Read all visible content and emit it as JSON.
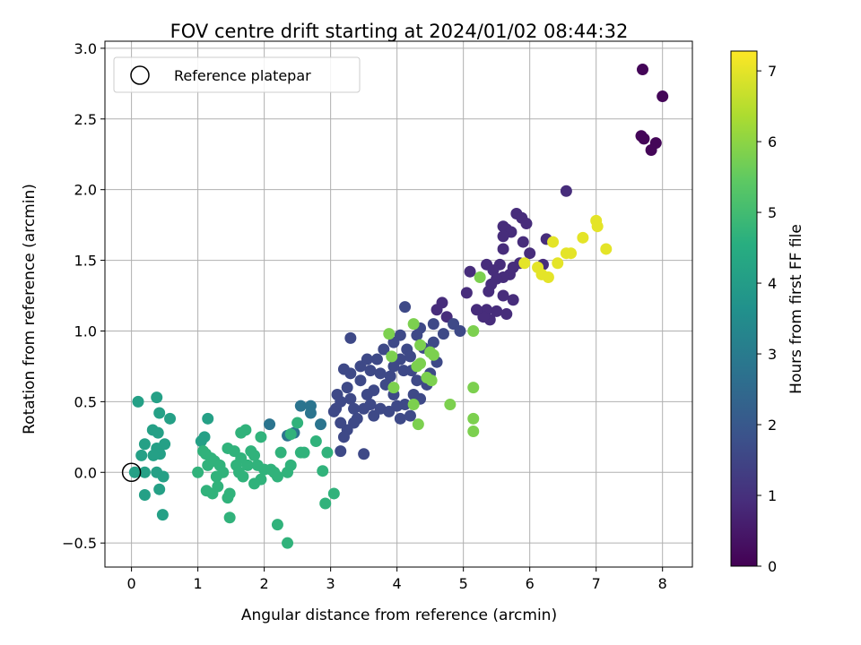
{
  "chart_data": {
    "type": "scatter",
    "title": "FOV centre drift starting at 2024/01/02 08:44:32",
    "xlabel": "Angular distance from reference (arcmin)",
    "ylabel": "Rotation from reference (arcmin)",
    "xlim": [
      -0.4,
      8.45
    ],
    "ylim": [
      -0.67,
      3.05
    ],
    "xticks": [
      0,
      1,
      2,
      3,
      4,
      5,
      6,
      7,
      8
    ],
    "xtick_labels": [
      "0",
      "1",
      "2",
      "3",
      "4",
      "5",
      "6",
      "7",
      "8"
    ],
    "yticks": [
      -0.5,
      0.0,
      0.5,
      1.0,
      1.5,
      2.0,
      2.5,
      3.0
    ],
    "ytick_labels": [
      "−0.5",
      "0.0",
      "0.5",
      "1.0",
      "1.5",
      "2.0",
      "2.5",
      "3.0"
    ],
    "grid": true,
    "legend": {
      "position": "top-left",
      "entries": [
        "Reference platepar"
      ]
    },
    "reference_marker": {
      "x": 0,
      "y": 0,
      "label": "Reference platepar",
      "style": "open-circle"
    },
    "colorbar": {
      "label": "Hours from first FF file",
      "range": [
        0,
        7.28
      ],
      "ticks": [
        0,
        1,
        2,
        3,
        4,
        5,
        6,
        7
      ],
      "tick_labels": [
        "0",
        "1",
        "2",
        "3",
        "4",
        "5",
        "6",
        "7"
      ],
      "colormap": "viridis"
    },
    "series": [
      {
        "color_value": 0.1,
        "points": [
          [
            7.7,
            2.85
          ],
          [
            8.0,
            2.66
          ],
          [
            7.68,
            2.38
          ],
          [
            7.72,
            2.36
          ],
          [
            7.9,
            2.33
          ],
          [
            7.83,
            2.28
          ]
        ]
      },
      {
        "color_value": 0.9,
        "points": [
          [
            6.55,
            1.99
          ],
          [
            5.8,
            1.83
          ],
          [
            5.88,
            1.8
          ],
          [
            5.95,
            1.76
          ],
          [
            5.6,
            1.74
          ],
          [
            5.65,
            1.72
          ],
          [
            5.72,
            1.7
          ],
          [
            5.6,
            1.67
          ],
          [
            6.25,
            1.65
          ],
          [
            5.9,
            1.63
          ],
          [
            5.6,
            1.58
          ],
          [
            6.0,
            1.55
          ],
          [
            6.2,
            1.47
          ],
          [
            5.85,
            1.48
          ],
          [
            5.75,
            1.45
          ],
          [
            5.55,
            1.47
          ],
          [
            5.35,
            1.47
          ],
          [
            5.45,
            1.43
          ],
          [
            5.7,
            1.4
          ],
          [
            5.6,
            1.38
          ],
          [
            5.5,
            1.37
          ],
          [
            5.42,
            1.33
          ],
          [
            5.38,
            1.28
          ],
          [
            5.6,
            1.25
          ],
          [
            5.75,
            1.22
          ],
          [
            5.1,
            1.42
          ],
          [
            5.05,
            1.27
          ],
          [
            5.35,
            1.15
          ],
          [
            5.5,
            1.14
          ],
          [
            5.65,
            1.12
          ],
          [
            5.4,
            1.08
          ],
          [
            5.3,
            1.1
          ],
          [
            5.2,
            1.15
          ],
          [
            4.68,
            1.2
          ],
          [
            4.6,
            1.15
          ],
          [
            4.75,
            1.1
          ]
        ]
      },
      {
        "color_value": 1.6,
        "points": [
          [
            4.85,
            1.05
          ],
          [
            4.95,
            1.0
          ],
          [
            4.7,
            0.98
          ],
          [
            4.55,
            1.05
          ],
          [
            4.35,
            1.02
          ],
          [
            4.55,
            0.92
          ],
          [
            4.4,
            0.88
          ],
          [
            4.3,
            0.97
          ],
          [
            4.12,
            1.17
          ],
          [
            4.05,
            0.97
          ],
          [
            3.95,
            0.92
          ],
          [
            4.15,
            0.87
          ],
          [
            4.2,
            0.82
          ],
          [
            4.05,
            0.8
          ],
          [
            3.95,
            0.75
          ],
          [
            4.1,
            0.72
          ],
          [
            4.22,
            0.72
          ],
          [
            3.3,
            0.95
          ],
          [
            3.8,
            0.87
          ],
          [
            3.7,
            0.8
          ],
          [
            3.55,
            0.8
          ],
          [
            3.6,
            0.72
          ],
          [
            3.45,
            0.75
          ],
          [
            3.75,
            0.7
          ],
          [
            3.9,
            0.68
          ],
          [
            3.83,
            0.62
          ],
          [
            3.65,
            0.58
          ],
          [
            3.55,
            0.55
          ],
          [
            3.45,
            0.65
          ],
          [
            3.2,
            0.73
          ],
          [
            3.3,
            0.7
          ],
          [
            3.25,
            0.6
          ],
          [
            3.1,
            0.55
          ],
          [
            3.15,
            0.5
          ],
          [
            3.08,
            0.45
          ],
          [
            3.3,
            0.52
          ],
          [
            3.35,
            0.45
          ],
          [
            3.5,
            0.45
          ],
          [
            3.6,
            0.48
          ],
          [
            3.75,
            0.45
          ],
          [
            3.65,
            0.4
          ],
          [
            3.4,
            0.38
          ],
          [
            3.35,
            0.35
          ],
          [
            3.25,
            0.3
          ],
          [
            3.15,
            0.35
          ],
          [
            3.05,
            0.43
          ],
          [
            3.5,
            0.13
          ],
          [
            3.15,
            0.15
          ],
          [
            3.2,
            0.25
          ],
          [
            4.05,
            0.38
          ],
          [
            4.2,
            0.4
          ],
          [
            4.35,
            0.52
          ],
          [
            4.3,
            0.65
          ],
          [
            4.45,
            0.62
          ],
          [
            4.6,
            0.78
          ],
          [
            4.5,
            0.7
          ],
          [
            4.25,
            0.55
          ],
          [
            4.12,
            0.48
          ],
          [
            4.0,
            0.47
          ],
          [
            3.88,
            0.43
          ],
          [
            3.95,
            0.55
          ]
        ]
      },
      {
        "color_value": 2.8,
        "points": [
          [
            2.55,
            0.47
          ],
          [
            2.7,
            0.47
          ],
          [
            2.7,
            0.42
          ],
          [
            2.85,
            0.34
          ],
          [
            2.45,
            0.28
          ],
          [
            2.35,
            0.26
          ],
          [
            2.08,
            0.34
          ]
        ]
      },
      {
        "color_value": 4.1,
        "points": [
          [
            0.1,
            0.5
          ],
          [
            0.38,
            0.53
          ],
          [
            0.42,
            0.42
          ],
          [
            0.58,
            0.38
          ],
          [
            0.32,
            0.3
          ],
          [
            0.4,
            0.28
          ],
          [
            0.5,
            0.2
          ],
          [
            0.2,
            0.2
          ],
          [
            0.38,
            0.17
          ],
          [
            0.43,
            0.13
          ],
          [
            0.33,
            0.12
          ],
          [
            0.15,
            0.12
          ],
          [
            0.05,
            0.0
          ],
          [
            0.2,
            0.0
          ],
          [
            0.38,
            0.0
          ],
          [
            0.48,
            -0.03
          ],
          [
            0.42,
            -0.12
          ],
          [
            0.2,
            -0.16
          ],
          [
            0.47,
            -0.3
          ],
          [
            1.1,
            0.25
          ],
          [
            1.05,
            0.22
          ],
          [
            1.15,
            0.38
          ]
        ]
      },
      {
        "color_value": 4.7,
        "points": [
          [
            1.0,
            0.0
          ],
          [
            1.08,
            0.15
          ],
          [
            1.12,
            0.13
          ],
          [
            1.2,
            0.1
          ],
          [
            1.15,
            0.05
          ],
          [
            1.25,
            0.08
          ],
          [
            1.33,
            0.05
          ],
          [
            1.38,
            0.0
          ],
          [
            1.28,
            -0.03
          ],
          [
            1.13,
            -0.13
          ],
          [
            1.22,
            -0.15
          ],
          [
            1.3,
            -0.1
          ],
          [
            1.48,
            -0.15
          ],
          [
            1.45,
            -0.18
          ],
          [
            1.48,
            -0.32
          ],
          [
            1.45,
            0.17
          ],
          [
            1.55,
            0.15
          ],
          [
            1.65,
            0.1
          ],
          [
            1.58,
            0.05
          ],
          [
            1.62,
            0.0
          ],
          [
            1.68,
            -0.03
          ],
          [
            1.75,
            0.05
          ],
          [
            1.85,
            0.12
          ],
          [
            1.72,
            0.3
          ],
          [
            1.65,
            0.28
          ],
          [
            1.95,
            0.25
          ],
          [
            1.8,
            0.15
          ],
          [
            1.9,
            0.05
          ],
          [
            2.1,
            0.02
          ],
          [
            2.15,
            0.0
          ],
          [
            2.0,
            0.02
          ],
          [
            2.2,
            -0.03
          ],
          [
            1.95,
            -0.05
          ],
          [
            1.85,
            -0.08
          ],
          [
            2.25,
            0.14
          ],
          [
            2.4,
            0.27
          ],
          [
            2.35,
            0.0
          ],
          [
            2.4,
            0.05
          ],
          [
            2.5,
            0.35
          ],
          [
            2.2,
            -0.37
          ],
          [
            2.35,
            -0.5
          ],
          [
            2.55,
            0.14
          ],
          [
            2.6,
            0.14
          ],
          [
            2.78,
            0.22
          ],
          [
            2.95,
            0.14
          ],
          [
            2.88,
            0.01
          ],
          [
            3.05,
            -0.15
          ],
          [
            2.92,
            -0.22
          ]
        ]
      },
      {
        "color_value": 5.8,
        "points": [
          [
            4.25,
            1.05
          ],
          [
            3.88,
            0.98
          ],
          [
            3.92,
            0.82
          ],
          [
            4.35,
            0.9
          ],
          [
            4.5,
            0.85
          ],
          [
            4.55,
            0.83
          ],
          [
            4.35,
            0.77
          ],
          [
            4.3,
            0.75
          ],
          [
            4.45,
            0.67
          ],
          [
            4.52,
            0.65
          ],
          [
            3.95,
            0.6
          ],
          [
            4.25,
            0.48
          ],
          [
            4.32,
            0.34
          ],
          [
            4.8,
            0.48
          ],
          [
            5.25,
            1.38
          ],
          [
            5.15,
            1.0
          ],
          [
            5.15,
            0.6
          ],
          [
            5.15,
            0.38
          ],
          [
            5.15,
            0.29
          ]
        ]
      },
      {
        "color_value": 7.0,
        "points": [
          [
            5.92,
            1.48
          ],
          [
            6.35,
            1.63
          ],
          [
            6.12,
            1.45
          ],
          [
            6.18,
            1.4
          ],
          [
            6.28,
            1.38
          ],
          [
            6.42,
            1.48
          ],
          [
            6.55,
            1.55
          ],
          [
            6.62,
            1.55
          ],
          [
            6.8,
            1.66
          ],
          [
            7.0,
            1.78
          ],
          [
            7.02,
            1.74
          ],
          [
            7.15,
            1.58
          ]
        ]
      }
    ]
  }
}
